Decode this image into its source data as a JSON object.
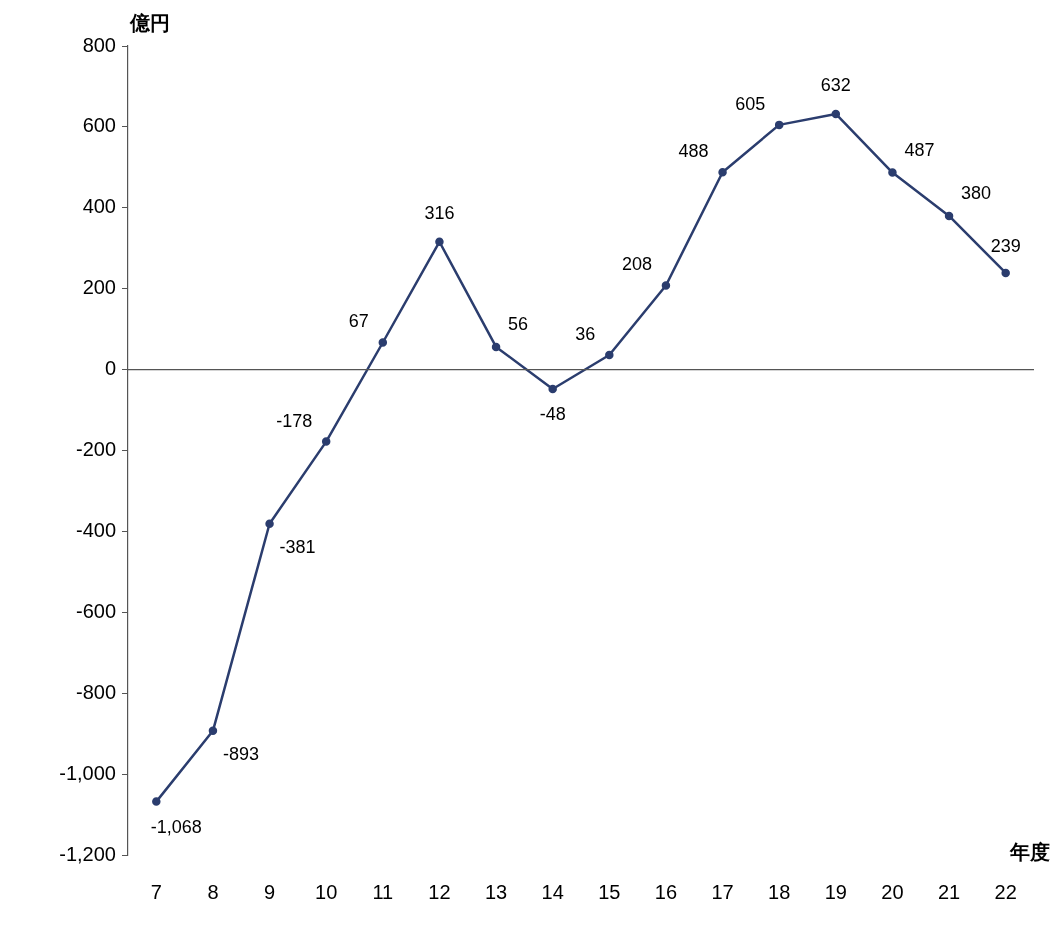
{
  "chart_data": {
    "type": "line",
    "ylabel": "億円",
    "xlabel": "年度",
    "categories": [
      "7",
      "8",
      "9",
      "10",
      "11",
      "12",
      "13",
      "14",
      "15",
      "16",
      "17",
      "18",
      "19",
      "20",
      "21",
      "22"
    ],
    "values": [
      -1068,
      -893,
      -381,
      -178,
      67,
      316,
      56,
      -48,
      36,
      208,
      488,
      605,
      632,
      487,
      380,
      239
    ],
    "value_labels": [
      "-1,068",
      "-893",
      "-381",
      "-178",
      "67",
      "316",
      "56",
      "-48",
      "36",
      "208",
      "488",
      "605",
      "632",
      "487",
      "380",
      "239"
    ],
    "color": "#2b3d6e",
    "marker": "circle",
    "line_style": "solid",
    "grid": false,
    "legend": false,
    "ylim": [
      -1200,
      800
    ],
    "yticks": [
      {
        "value": -1200,
        "label": "-1,200"
      },
      {
        "value": -1000,
        "label": "-1,000"
      },
      -800,
      -600,
      -400,
      -200,
      0,
      200,
      400,
      600,
      800
    ],
    "ref_lines": [
      {
        "axis": "y",
        "value": 0,
        "color": "#555555"
      }
    ]
  }
}
